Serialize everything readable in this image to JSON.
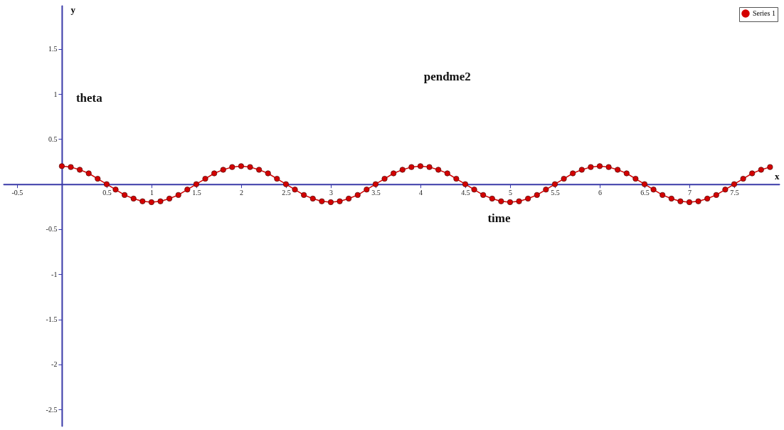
{
  "chart_data": {
    "type": "line",
    "title": "pendme2",
    "xlabel": "x",
    "ylabel": "y",
    "annotations": [
      "theta",
      "time"
    ],
    "x": [
      0,
      0.1,
      0.2,
      0.3,
      0.4,
      0.5,
      0.6,
      0.7,
      0.8,
      0.9,
      1,
      1.1,
      1.2,
      1.3,
      1.4,
      1.5,
      1.6,
      1.7,
      1.8,
      1.9,
      2,
      2.1,
      2.2,
      2.3,
      2.4,
      2.5,
      2.6,
      2.7,
      2.8,
      2.9,
      3,
      3.1,
      3.2,
      3.3,
      3.4,
      3.5,
      3.6,
      3.7,
      3.8,
      3.9,
      4,
      4.1,
      4.2,
      4.3,
      4.4,
      4.5,
      4.6,
      4.7,
      4.8,
      4.9,
      5,
      5.1,
      5.2,
      5.3,
      5.4,
      5.5,
      5.6,
      5.7,
      5.8,
      5.9,
      6,
      6.1,
      6.2,
      6.3,
      6.4,
      6.5,
      6.6,
      6.7,
      6.8,
      6.9,
      7,
      7.1,
      7.2,
      7.3,
      7.4,
      7.5,
      7.6,
      7.7,
      7.8,
      7.9
    ],
    "series": [
      {
        "name": "Series 1",
        "color": "#d40000",
        "values": [
          0.2,
          0.19,
          0.16,
          0.12,
          0.06,
          0,
          -0.06,
          -0.12,
          -0.16,
          -0.19,
          -0.2,
          -0.19,
          -0.16,
          -0.12,
          -0.06,
          0,
          0.06,
          0.12,
          0.16,
          0.19,
          0.2,
          0.19,
          0.16,
          0.12,
          0.06,
          0,
          -0.06,
          -0.12,
          -0.16,
          -0.19,
          -0.2,
          -0.19,
          -0.16,
          -0.12,
          -0.06,
          0,
          0.06,
          0.12,
          0.16,
          0.19,
          0.2,
          0.19,
          0.16,
          0.12,
          0.06,
          0,
          -0.06,
          -0.12,
          -0.16,
          -0.19,
          -0.2,
          -0.19,
          -0.16,
          -0.12,
          -0.06,
          0,
          0.06,
          0.12,
          0.16,
          0.19,
          0.2,
          0.19,
          0.16,
          0.12,
          0.06,
          0,
          -0.06,
          -0.12,
          -0.16,
          -0.19,
          -0.2,
          -0.19,
          -0.16,
          -0.12,
          -0.06,
          0,
          0.06,
          0.12,
          0.16,
          0.19
        ]
      }
    ],
    "xlim": [
      -0.65,
      8
    ],
    "ylim": [
      -2.68,
      1.98
    ],
    "xticks": [
      -0.5,
      0.5,
      1,
      1.5,
      2,
      2.5,
      3,
      3.5,
      4,
      4.5,
      5,
      5.5,
      6,
      6.5,
      7,
      7.5
    ],
    "yticks": [
      -2.5,
      -2,
      -1.5,
      -1,
      -0.5,
      0.5,
      1,
      1.5
    ],
    "grid": false,
    "legend": "top right",
    "marker": "circle",
    "line_style": "solid"
  }
}
